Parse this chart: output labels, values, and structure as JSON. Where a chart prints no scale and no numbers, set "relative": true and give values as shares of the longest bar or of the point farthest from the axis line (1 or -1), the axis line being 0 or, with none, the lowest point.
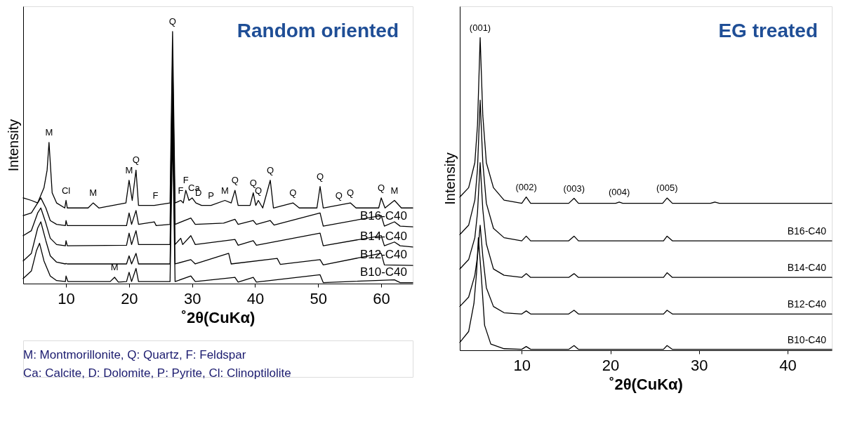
{
  "chart_data": [
    {
      "type": "line",
      "title": "Random oriented",
      "xlabel": "˚2θ(CuKα)",
      "ylabel": "Intensity",
      "relative": true,
      "xlim": [
        3.2,
        65
      ],
      "xticks": [
        10,
        20,
        30,
        40,
        50,
        60
      ],
      "tick_labels": "x",
      "grid": false,
      "series": [
        {
          "color": "#000000",
          "x": [
            3.2,
            4.5,
            5.5,
            6.5,
            7.0,
            7.3,
            7.8,
            8.5,
            9.8,
            10.0,
            10.2,
            13.5,
            14.3,
            15.2,
            19.5,
            20.0,
            20.5,
            21.1,
            21.5,
            24.0,
            26.5,
            26.9,
            27.3,
            28.2,
            28.6,
            29.0,
            29.5,
            30.0,
            30.6,
            31.5,
            33.0,
            35.2,
            36.2,
            36.8,
            37.3,
            39.2,
            39.7,
            40.1,
            40.5,
            41.2,
            42.4,
            42.9,
            46.0,
            47.0,
            49.8,
            50.3,
            50.8,
            55.1,
            56.0,
            59.6,
            60.0,
            60.6,
            62.1,
            63.2,
            65.0
          ],
          "values": [
            0.34,
            0.33,
            0.32,
            0.38,
            0.45,
            0.56,
            0.36,
            0.32,
            0.3,
            0.33,
            0.3,
            0.3,
            0.32,
            0.3,
            0.32,
            0.41,
            0.33,
            0.45,
            0.31,
            0.31,
            0.32,
            1.0,
            0.32,
            0.33,
            0.32,
            0.37,
            0.33,
            0.34,
            0.32,
            0.31,
            0.31,
            0.33,
            0.32,
            0.37,
            0.31,
            0.31,
            0.36,
            0.31,
            0.33,
            0.3,
            0.41,
            0.3,
            0.32,
            0.3,
            0.3,
            0.385,
            0.3,
            0.32,
            0.3,
            0.3,
            0.34,
            0.3,
            0.33,
            0.3,
            0.3
          ]
        },
        {
          "name": "B16-C40",
          "color": "#000000",
          "x": [
            3.2,
            4.5,
            5.5,
            6.0,
            6.8,
            7.5,
            8.5,
            9.9,
            10.0,
            10.2,
            19.6,
            20.0,
            20.4,
            21.1,
            21.5,
            24.0,
            24.3,
            26.5,
            26.9,
            27.3,
            29.8,
            30.5,
            35.0,
            36.8,
            37.3,
            39.7,
            40.2,
            42.4,
            43.0,
            50.3,
            50.8,
            60.0,
            60.5,
            62.1,
            63.0,
            65.0
          ],
          "values": [
            0.27,
            0.28,
            0.32,
            0.34,
            0.3,
            0.25,
            0.235,
            0.23,
            0.25,
            0.23,
            0.23,
            0.28,
            0.235,
            0.29,
            0.235,
            0.245,
            0.23,
            0.235,
            0.9,
            0.235,
            0.26,
            0.235,
            0.24,
            0.255,
            0.235,
            0.25,
            0.235,
            0.25,
            0.232,
            0.28,
            0.228,
            0.27,
            0.228,
            0.245,
            0.228,
            0.225
          ]
        },
        {
          "name": "B14-C40",
          "color": "#000000",
          "x": [
            3.2,
            4.5,
            5.5,
            6.0,
            6.8,
            7.5,
            8.5,
            9.9,
            10.0,
            10.2,
            19.6,
            20.0,
            20.4,
            21.1,
            21.5,
            26.5,
            26.9,
            27.3,
            28.2,
            28.5,
            29.8,
            30.5,
            36.8,
            37.3,
            39.7,
            40.2,
            50.3,
            50.8,
            60.0,
            60.5,
            62.1,
            63.0,
            65.0
          ],
          "values": [
            0.19,
            0.21,
            0.28,
            0.3,
            0.24,
            0.18,
            0.155,
            0.15,
            0.17,
            0.15,
            0.152,
            0.2,
            0.155,
            0.21,
            0.155,
            0.155,
            0.8,
            0.155,
            0.18,
            0.155,
            0.19,
            0.155,
            0.175,
            0.152,
            0.17,
            0.152,
            0.2,
            0.15,
            0.19,
            0.15,
            0.165,
            0.15,
            0.145
          ]
        },
        {
          "name": "B12-C40",
          "color": "#000000",
          "x": [
            3.2,
            4.5,
            5.5,
            6.0,
            6.8,
            7.5,
            8.5,
            9.9,
            10.0,
            10.2,
            19.6,
            20.0,
            20.4,
            21.1,
            21.5,
            26.5,
            26.9,
            27.3,
            29.8,
            30.5,
            35.8,
            36.2,
            43.5,
            44.0,
            50.3,
            50.8,
            60.0,
            60.5,
            65.0
          ],
          "values": [
            0.09,
            0.12,
            0.22,
            0.245,
            0.17,
            0.11,
            0.085,
            0.078,
            0.08,
            0.078,
            0.078,
            0.11,
            0.078,
            0.12,
            0.078,
            0.078,
            0.7,
            0.078,
            0.095,
            0.078,
            0.12,
            0.078,
            0.1,
            0.076,
            0.095,
            0.074,
            0.12,
            0.074,
            0.072
          ]
        },
        {
          "name": "B10-C40",
          "color": "#000000",
          "x": [
            3.2,
            4.5,
            5.3,
            5.8,
            6.5,
            7.5,
            8.5,
            9.9,
            10.0,
            10.3,
            17.0,
            17.7,
            18.3,
            19.6,
            20.0,
            20.4,
            21.1,
            21.5,
            26.5,
            26.9,
            27.3,
            29.8,
            30.5,
            36.8,
            37.3,
            39.7,
            40.2,
            50.3,
            50.8,
            62.1,
            63.0,
            65.0
          ],
          "values": [
            0.02,
            0.05,
            0.13,
            0.16,
            0.09,
            0.03,
            0.012,
            0.008,
            0.03,
            0.008,
            0.008,
            0.025,
            0.006,
            0.008,
            0.045,
            0.008,
            0.06,
            0.008,
            0.008,
            0.6,
            0.008,
            0.03,
            0.008,
            0.025,
            0.006,
            0.025,
            0.006,
            0.035,
            0.004,
            0.015,
            0.004,
            0.004
          ]
        }
      ],
      "annotations": [
        {
          "text": "M",
          "x": 7.3,
          "y": 0.56
        },
        {
          "text": "Cl",
          "x": 10.0,
          "y": 0.33
        },
        {
          "text": "M",
          "x": 14.3,
          "y": 0.32
        },
        {
          "text": "M",
          "x": 20.0,
          "y": 0.41
        },
        {
          "text": "Q",
          "x": 21.1,
          "y": 0.45
        },
        {
          "text": "F",
          "x": 24.2,
          "y": 0.31
        },
        {
          "text": "Q",
          "x": 26.9,
          "y": 1.0
        },
        {
          "text": "F",
          "x": 28.2,
          "y": 0.33
        },
        {
          "text": "F",
          "x": 29.0,
          "y": 0.37
        },
        {
          "text": "Ca",
          "x": 30.3,
          "y": 0.34
        },
        {
          "text": "D",
          "x": 31.0,
          "y": 0.32
        },
        {
          "text": "P",
          "x": 33.0,
          "y": 0.31
        },
        {
          "text": "M",
          "x": 35.2,
          "y": 0.33
        },
        {
          "text": "Q",
          "x": 36.8,
          "y": 0.37
        },
        {
          "text": "Q",
          "x": 39.7,
          "y": 0.36
        },
        {
          "text": "Q",
          "x": 40.5,
          "y": 0.33
        },
        {
          "text": "Q",
          "x": 42.4,
          "y": 0.41
        },
        {
          "text": "Q",
          "x": 46.0,
          "y": 0.32
        },
        {
          "text": "Q",
          "x": 50.3,
          "y": 0.385
        },
        {
          "text": "Q",
          "x": 53.3,
          "y": 0.31
        },
        {
          "text": "Q",
          "x": 55.1,
          "y": 0.32
        },
        {
          "text": "Q",
          "x": 60.0,
          "y": 0.34
        },
        {
          "text": "M",
          "x": 62.1,
          "y": 0.33
        },
        {
          "text": "M",
          "x": 17.7,
          "y": 0.025
        },
        "M: Montmorillonite, Q: Quartz, F: Feldspar",
        "Ca: Calcite, D: Dolomite, P: Pyrite, Cl: Clinoptilolite"
      ]
    },
    {
      "type": "line",
      "title": "EG treated",
      "xlabel": "˚2θ(CuKα)",
      "ylabel": "Intensity",
      "relative": true,
      "xlim": [
        3.0,
        45.0
      ],
      "xticks": [
        10,
        20,
        30,
        40
      ],
      "tick_labels": "x",
      "grid": false,
      "series": [
        {
          "color": "#000000",
          "x": [
            3.0,
            4.0,
            4.7,
            5.0,
            5.3,
            5.6,
            6.0,
            6.8,
            8.0,
            10.0,
            10.5,
            11.0,
            15.3,
            15.9,
            16.4,
            20.6,
            21.0,
            21.4,
            25.9,
            26.4,
            27.0,
            31.3,
            31.8,
            32.3,
            45.0
          ],
          "values": [
            0.49,
            0.52,
            0.6,
            0.72,
            1.0,
            0.75,
            0.6,
            0.52,
            0.48,
            0.47,
            0.49,
            0.47,
            0.47,
            0.486,
            0.47,
            0.47,
            0.474,
            0.47,
            0.47,
            0.487,
            0.47,
            0.47,
            0.474,
            0.47,
            0.47
          ]
        },
        {
          "name": "B16-C40",
          "color": "#000000",
          "x": [
            3.0,
            4.0,
            4.7,
            5.0,
            5.3,
            5.6,
            6.0,
            6.8,
            8.0,
            10.0,
            10.5,
            11.0,
            15.3,
            15.9,
            16.4,
            26.0,
            26.4,
            27.0,
            45.0
          ],
          "values": [
            0.37,
            0.4,
            0.48,
            0.58,
            0.8,
            0.6,
            0.47,
            0.39,
            0.36,
            0.35,
            0.365,
            0.35,
            0.35,
            0.365,
            0.35,
            0.35,
            0.365,
            0.35,
            0.35
          ]
        },
        {
          "name": "B14-C40",
          "color": "#000000",
          "x": [
            3.0,
            4.0,
            4.7,
            5.0,
            5.3,
            5.6,
            6.0,
            6.8,
            8.0,
            10.0,
            10.5,
            11.0,
            15.3,
            15.9,
            16.4,
            26.0,
            26.4,
            27.0,
            45.0
          ],
          "values": [
            0.26,
            0.29,
            0.36,
            0.44,
            0.6,
            0.45,
            0.34,
            0.26,
            0.24,
            0.233,
            0.245,
            0.233,
            0.233,
            0.245,
            0.233,
            0.233,
            0.248,
            0.233,
            0.233
          ]
        },
        {
          "name": "B12-C40",
          "color": "#000000",
          "x": [
            3.0,
            4.0,
            4.7,
            5.0,
            5.3,
            5.6,
            6.0,
            6.8,
            8.0,
            10.0,
            10.5,
            11.0,
            15.3,
            15.9,
            16.4,
            26.0,
            26.4,
            27.0,
            45.0
          ],
          "values": [
            0.14,
            0.17,
            0.24,
            0.3,
            0.4,
            0.3,
            0.2,
            0.14,
            0.12,
            0.116,
            0.126,
            0.116,
            0.116,
            0.128,
            0.116,
            0.116,
            0.128,
            0.116,
            0.116
          ]
        },
        {
          "name": "B10-C40",
          "color": "#000000",
          "x": [
            3.0,
            4.0,
            4.6,
            4.9,
            5.1,
            5.4,
            5.8,
            6.5,
            8.0,
            10.0,
            10.5,
            11.0,
            15.3,
            15.9,
            16.4,
            26.0,
            26.4,
            27.0,
            45.0
          ],
          "values": [
            0.025,
            0.06,
            0.15,
            0.25,
            0.36,
            0.25,
            0.08,
            0.02,
            0.005,
            0.003,
            0.012,
            0.003,
            0.003,
            0.015,
            0.003,
            0.003,
            0.015,
            0.003,
            0.003
          ]
        }
      ],
      "annotations": [
        {
          "text": "(001)",
          "x": 5.3,
          "y": 1.0
        },
        {
          "text": "(002)",
          "x": 10.5,
          "y": 0.49
        },
        {
          "text": "(003)",
          "x": 15.9,
          "y": 0.486
        },
        {
          "text": "(004)",
          "x": 21.0,
          "y": 0.474
        },
        {
          "text": "(005)",
          "x": 26.4,
          "y": 0.487
        }
      ]
    }
  ]
}
